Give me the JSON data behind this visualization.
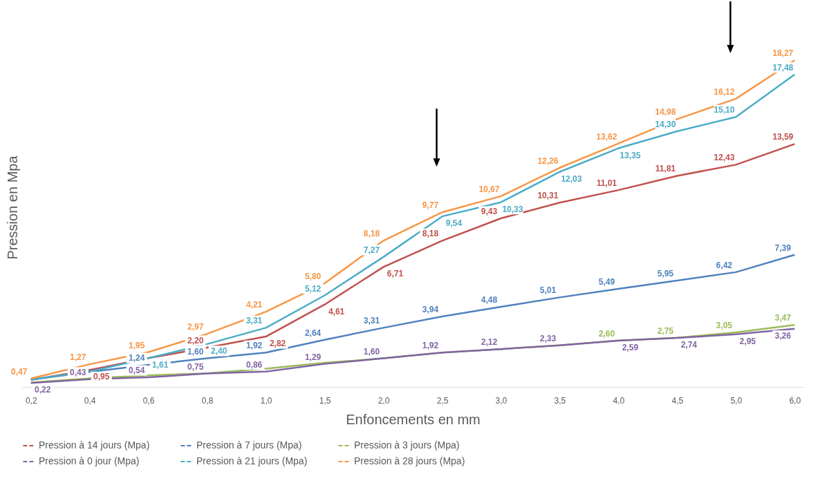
{
  "chart_data": {
    "type": "line",
    "xlabel": "Enfoncements en mm",
    "ylabel": "Pression en Mpa",
    "categories": [
      "0,2",
      "0,4",
      "0,6",
      "0,8",
      "1,0",
      "1,5",
      "2,0",
      "2,5",
      "3,0",
      "3,5",
      "4,0",
      "4,5",
      "5,0",
      "6,0"
    ],
    "series": [
      {
        "name": "Pression à 14 jours (Mpa)",
        "color": "#c0504d",
        "values": [
          0.4,
          0.95,
          1.61,
          2.2,
          2.82,
          4.61,
          6.71,
          8.18,
          9.43,
          10.31,
          11.01,
          11.81,
          12.43,
          13.59
        ],
        "value_labels": [
          null,
          "0,95",
          null,
          "2,20",
          "2,82",
          "4,61",
          "6,71",
          "8,18",
          "9,43",
          "10,31",
          "11,01",
          "11,81",
          "12,43",
          "13,59"
        ]
      },
      {
        "name": "Pression à 7 jours (Mpa)",
        "color": "#4f81bd",
        "values": [
          0.41,
          0.84,
          1.24,
          1.6,
          1.92,
          2.64,
          3.31,
          3.94,
          4.48,
          5.01,
          5.49,
          5.95,
          6.42,
          7.39
        ],
        "value_labels": [
          null,
          null,
          "1,24",
          "1,60",
          "1,92",
          "2,64",
          "3,31",
          "3,94",
          "4,48",
          "5,01",
          "5,49",
          "5,95",
          "6,42",
          "7,39"
        ]
      },
      {
        "name": "Pression à 3 jours (Mpa)",
        "color": "#9bbb59",
        "values": [
          0.25,
          0.48,
          0.65,
          0.76,
          1.02,
          1.35,
          1.6,
          1.92,
          2.12,
          2.33,
          2.6,
          2.75,
          3.05,
          3.47
        ],
        "value_labels": [
          null,
          null,
          null,
          null,
          null,
          null,
          null,
          null,
          null,
          null,
          "2,60",
          "2,75",
          "3,05",
          "3,47"
        ]
      },
      {
        "name": "Pression à 0 jour (Mpa)",
        "color": "#8064a2",
        "values": [
          0.22,
          0.43,
          0.54,
          0.75,
          0.86,
          1.29,
          1.6,
          1.92,
          2.12,
          2.33,
          2.59,
          2.74,
          2.95,
          3.26
        ],
        "value_labels": [
          "0,22",
          "0,43",
          "0,54",
          "0,75",
          "0,86",
          "1,29",
          "1,60",
          "1,92",
          "2,12",
          "2,33",
          "2,59",
          "2,74",
          "2,95",
          "3,26"
        ]
      },
      {
        "name": "Pression à 21 jours (Mpa)",
        "color": "#4bacc6",
        "values": [
          0.42,
          0.86,
          1.61,
          2.4,
          3.31,
          5.12,
          7.27,
          9.54,
          10.33,
          12.03,
          13.35,
          14.3,
          15.1,
          17.48
        ],
        "value_labels": [
          null,
          null,
          "1,61",
          "2,40",
          "3,31",
          "5,12",
          "7,27",
          "9,54",
          "10,33",
          "12,03",
          "13,35",
          "14,30",
          "15,10",
          "17,48"
        ]
      },
      {
        "name": "Pression à 28 jours (Mpa)",
        "color": "#f79646",
        "values": [
          0.47,
          1.27,
          1.95,
          2.97,
          4.21,
          5.8,
          8.18,
          9.77,
          10.67,
          12.26,
          13.62,
          14.98,
          16.12,
          18.27
        ],
        "value_labels": [
          "0,47",
          "1,27",
          "1,95",
          "2,97",
          "4,21",
          "5,80",
          "8,18",
          "9,77",
          "10,67",
          "12,26",
          "13,62",
          "14,98",
          "16,12",
          "18,27"
        ]
      }
    ],
    "legend": "bottom",
    "grid": false,
    "marker": "none",
    "line_style": "solid"
  }
}
